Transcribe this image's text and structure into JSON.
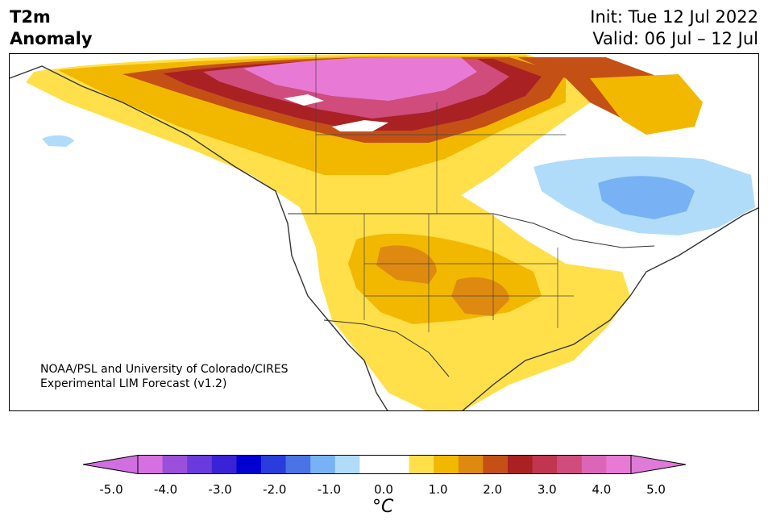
{
  "header": {
    "title_line1": "T2m",
    "title_line2": "Anomaly",
    "init_text": "Init: Tue 12 Jul 2022",
    "valid_text": "Valid: 06 Jul – 12 Jul"
  },
  "map": {
    "credit_line1": "NOAA/PSL and University of Colorado/CIRES",
    "credit_line2": "Experimental LIM Forecast (v1.2)"
  },
  "colorbar": {
    "unit": "°C",
    "tick_labels": [
      "-5.0",
      "-4.0",
      "-3.0",
      "-2.0",
      "-1.0",
      "0.0",
      "1.0",
      "2.0",
      "3.0",
      "4.0",
      "5.0"
    ],
    "colors": [
      "#d66fe0",
      "#9a50db",
      "#6a3bdc",
      "#3a22d6",
      "#0000d0",
      "#2a3ddc",
      "#4a73e6",
      "#78b2f4",
      "#b0dcfa",
      "#ffffff",
      "#ffffff",
      "#ffe04a",
      "#f2b800",
      "#de8a10",
      "#c45016",
      "#aa2124",
      "#c2354f",
      "#d04c7c",
      "#dc65b8",
      "#e87ad6"
    ],
    "extend_low_color": "#d070e0",
    "extend_high_color": "#e07ad8"
  }
}
